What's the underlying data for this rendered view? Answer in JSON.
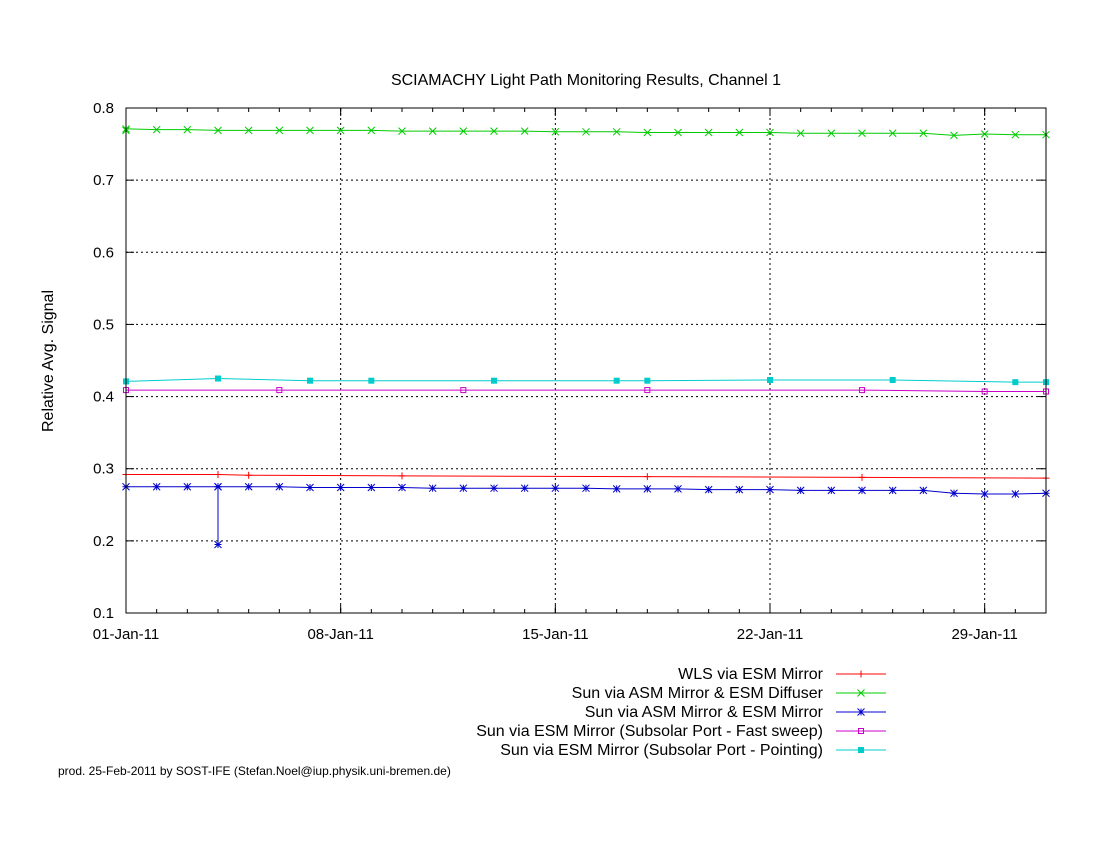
{
  "chart_data": {
    "type": "line",
    "title": "SCIAMACHY Light Path Monitoring Results, Channel 1",
    "xlabel": "",
    "ylabel": "Relative Avg. Signal",
    "x_start": "2011-01-01",
    "xlim": [
      "2011-01-01",
      "2011-01-31"
    ],
    "x_ticks": [
      {
        "date": "2011-01-01",
        "label": "01-Jan-11"
      },
      {
        "date": "2011-01-08",
        "label": "08-Jan-11"
      },
      {
        "date": "2011-01-15",
        "label": "15-Jan-11"
      },
      {
        "date": "2011-01-22",
        "label": "22-Jan-11"
      },
      {
        "date": "2011-01-29",
        "label": "29-Jan-11"
      }
    ],
    "ylim": [
      0.1,
      0.8
    ],
    "y_ticks": [
      0.1,
      0.2,
      0.3,
      0.4,
      0.5,
      0.6,
      0.7,
      0.8
    ],
    "y_tick_labels": [
      "0.1",
      "0.2",
      "0.3",
      "0.4",
      "0.5",
      "0.6",
      "0.7",
      "0.8"
    ],
    "grid": true,
    "legend_position": "below plot, right aligned",
    "series": [
      {
        "name": "WLS via ESM Mirror",
        "color": "#ff0000",
        "marker": "plus",
        "points": [
          [
            "2011-01-01",
            0.292
          ],
          [
            "2011-01-04",
            0.292
          ],
          [
            "2011-01-05",
            0.291
          ],
          [
            "2011-01-10",
            0.29
          ],
          [
            "2011-01-18",
            0.289
          ],
          [
            "2011-01-25",
            0.288
          ],
          [
            "2011-01-31",
            0.287
          ]
        ]
      },
      {
        "name": "Sun via ASM Mirror & ESM Diffuser",
        "color": "#00cc00",
        "marker": "cross",
        "points": [
          [
            "2011-01-01",
            0.769
          ],
          [
            "2011-01-01",
            0.771
          ],
          [
            "2011-01-02",
            0.77
          ],
          [
            "2011-01-03",
            0.77
          ],
          [
            "2011-01-04",
            0.769
          ],
          [
            "2011-01-05",
            0.769
          ],
          [
            "2011-01-06",
            0.769
          ],
          [
            "2011-01-07",
            0.769
          ],
          [
            "2011-01-08",
            0.769
          ],
          [
            "2011-01-09",
            0.769
          ],
          [
            "2011-01-10",
            0.768
          ],
          [
            "2011-01-11",
            0.768
          ],
          [
            "2011-01-12",
            0.768
          ],
          [
            "2011-01-13",
            0.768
          ],
          [
            "2011-01-14",
            0.768
          ],
          [
            "2011-01-15",
            0.767
          ],
          [
            "2011-01-16",
            0.767
          ],
          [
            "2011-01-17",
            0.767
          ],
          [
            "2011-01-18",
            0.766
          ],
          [
            "2011-01-19",
            0.766
          ],
          [
            "2011-01-20",
            0.766
          ],
          [
            "2011-01-21",
            0.766
          ],
          [
            "2011-01-22",
            0.766
          ],
          [
            "2011-01-23",
            0.765
          ],
          [
            "2011-01-24",
            0.765
          ],
          [
            "2011-01-25",
            0.765
          ],
          [
            "2011-01-26",
            0.765
          ],
          [
            "2011-01-27",
            0.765
          ],
          [
            "2011-01-28",
            0.762
          ],
          [
            "2011-01-29",
            0.764
          ],
          [
            "2011-01-30",
            0.763
          ],
          [
            "2011-01-31",
            0.763
          ]
        ]
      },
      {
        "name": "Sun via ASM Mirror & ESM Mirror",
        "color": "#0000cc",
        "marker": "star",
        "points": [
          [
            "2011-01-01",
            0.275
          ],
          [
            "2011-01-02",
            0.275
          ],
          [
            "2011-01-03",
            0.275
          ],
          [
            "2011-01-04",
            0.275
          ],
          [
            "2011-01-04",
            0.195
          ],
          [
            "2011-01-04",
            0.275
          ],
          [
            "2011-01-05",
            0.275
          ],
          [
            "2011-01-06",
            0.275
          ],
          [
            "2011-01-07",
            0.274
          ],
          [
            "2011-01-08",
            0.274
          ],
          [
            "2011-01-09",
            0.274
          ],
          [
            "2011-01-10",
            0.274
          ],
          [
            "2011-01-11",
            0.273
          ],
          [
            "2011-01-12",
            0.273
          ],
          [
            "2011-01-13",
            0.273
          ],
          [
            "2011-01-14",
            0.273
          ],
          [
            "2011-01-15",
            0.273
          ],
          [
            "2011-01-16",
            0.273
          ],
          [
            "2011-01-17",
            0.272
          ],
          [
            "2011-01-18",
            0.272
          ],
          [
            "2011-01-19",
            0.272
          ],
          [
            "2011-01-20",
            0.271
          ],
          [
            "2011-01-21",
            0.271
          ],
          [
            "2011-01-22",
            0.271
          ],
          [
            "2011-01-23",
            0.27
          ],
          [
            "2011-01-24",
            0.27
          ],
          [
            "2011-01-25",
            0.27
          ],
          [
            "2011-01-26",
            0.27
          ],
          [
            "2011-01-27",
            0.27
          ],
          [
            "2011-01-28",
            0.266
          ],
          [
            "2011-01-29",
            0.265
          ],
          [
            "2011-01-30",
            0.265
          ],
          [
            "2011-01-31",
            0.266
          ]
        ]
      },
      {
        "name": "Sun via ESM Mirror (Subsolar Port - Fast sweep)",
        "color": "#cc00cc",
        "marker": "open-square",
        "points": [
          [
            "2011-01-01",
            0.409
          ],
          [
            "2011-01-06",
            0.409
          ],
          [
            "2011-01-12",
            0.409
          ],
          [
            "2011-01-18",
            0.409
          ],
          [
            "2011-01-25",
            0.409
          ],
          [
            "2011-01-29",
            0.407
          ],
          [
            "2011-01-31",
            0.407
          ]
        ]
      },
      {
        "name": "Sun via ESM Mirror (Subsolar Port - Pointing)",
        "color": "#00cccc",
        "marker": "filled-square",
        "points": [
          [
            "2011-01-01",
            0.421
          ],
          [
            "2011-01-04",
            0.425
          ],
          [
            "2011-01-07",
            0.422
          ],
          [
            "2011-01-09",
            0.422
          ],
          [
            "2011-01-13",
            0.422
          ],
          [
            "2011-01-17",
            0.422
          ],
          [
            "2011-01-18",
            0.422
          ],
          [
            "2011-01-22",
            0.423
          ],
          [
            "2011-01-26",
            0.423
          ],
          [
            "2011-01-30",
            0.42
          ],
          [
            "2011-01-31",
            0.42
          ]
        ]
      }
    ]
  },
  "footer": {
    "credit": "prod. 25-Feb-2011 by SOST-IFE (Stefan.Noel@iup.physik.uni-bremen.de)"
  }
}
